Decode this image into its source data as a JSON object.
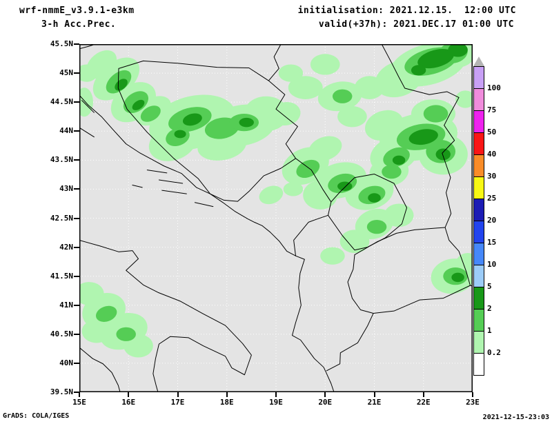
{
  "header": {
    "model": "wrf-nmmE_v3.9.1-e3km",
    "product": "3-h Acc.Prec.",
    "init_line": "initialisation: 2021.12.15.  12:00 UTC",
    "valid_line": "valid(+37h): 2021.DEC.17 01:00 UTC"
  },
  "footer": {
    "grads_credit": "GrADS: COLA/IGES",
    "timestamp": "2021-12-15-23:03"
  },
  "axes": {
    "lat_labels": [
      "45.5N",
      "45N",
      "44.5N",
      "44N",
      "43.5N",
      "43N",
      "42.5N",
      "42N",
      "41.5N",
      "41N",
      "40.5N",
      "40N",
      "39.5N"
    ],
    "lon_labels": [
      "15E",
      "16E",
      "17E",
      "18E",
      "19E",
      "20E",
      "21E",
      "22E",
      "23E"
    ]
  },
  "map": {
    "background": "#e4e4e4",
    "grid_color": "#ffffff",
    "outline_color": "#000000",
    "lon_range": [
      15,
      23
    ],
    "lat_range": [
      39.5,
      45.5
    ]
  },
  "legend": {
    "triangle_color": "#b4b4b4",
    "colors": [
      "#c8a0f5",
      "#f08cdc",
      "#ee22ee",
      "#fa1616",
      "#fa8c28",
      "#f8f814",
      "#1c1cb4",
      "#2244ee",
      "#4688fa",
      "#9cccf8",
      "#189818",
      "#55cd55",
      "#b0f5b0",
      "#ffffff"
    ],
    "labels": [
      "100",
      "75",
      "50",
      "40",
      "30",
      "25",
      "20",
      "15",
      "10",
      "5",
      "2",
      "1",
      "0.2"
    ]
  },
  "precip": {
    "colors": {
      "light": "#b0f5b0",
      "mid": "#55cd55",
      "dark": "#189818"
    },
    "blobs": {
      "light": [
        [
          15.75,
          44.9,
          0.55,
          0.28,
          -40
        ],
        [
          16.1,
          44.5,
          0.5,
          0.3,
          -35
        ],
        [
          15.45,
          45.15,
          0.35,
          0.2,
          -40
        ],
        [
          16.5,
          44.35,
          0.4,
          0.22,
          -30
        ],
        [
          15.15,
          45.0,
          0.22,
          0.15,
          0
        ],
        [
          15.1,
          44.5,
          0.18,
          0.25,
          0
        ],
        [
          17.3,
          44.15,
          0.9,
          0.45,
          -15
        ],
        [
          18.3,
          44.1,
          0.7,
          0.35,
          -10
        ],
        [
          16.9,
          43.8,
          0.5,
          0.3,
          -20
        ],
        [
          17.9,
          43.75,
          0.5,
          0.25,
          -10
        ],
        [
          18.8,
          44.3,
          0.45,
          0.3,
          0
        ],
        [
          19.2,
          44.3,
          0.3,
          0.2,
          -10
        ],
        [
          19.6,
          44.75,
          0.35,
          0.2,
          0
        ],
        [
          20.3,
          44.6,
          0.45,
          0.25,
          -10
        ],
        [
          20.9,
          44.75,
          0.3,
          0.2,
          0
        ],
        [
          20.0,
          45.15,
          0.3,
          0.18,
          0
        ],
        [
          19.3,
          45.0,
          0.25,
          0.15,
          0
        ],
        [
          20.55,
          44.25,
          0.3,
          0.18,
          0
        ],
        [
          22.1,
          45.15,
          0.8,
          0.35,
          -15
        ],
        [
          21.5,
          44.9,
          0.5,
          0.3,
          -20
        ],
        [
          22.7,
          45.35,
          0.35,
          0.25,
          0
        ],
        [
          21.9,
          43.9,
          0.8,
          0.4,
          -10
        ],
        [
          22.4,
          43.6,
          0.5,
          0.35,
          0
        ],
        [
          21.4,
          43.6,
          0.5,
          0.3,
          -20
        ],
        [
          22.2,
          44.3,
          0.45,
          0.25,
          0
        ],
        [
          21.2,
          44.1,
          0.4,
          0.25,
          -20
        ],
        [
          22.85,
          44.55,
          0.2,
          0.15,
          0
        ],
        [
          19.6,
          43.4,
          0.5,
          0.3,
          -25
        ],
        [
          20.3,
          43.15,
          0.55,
          0.3,
          -15
        ],
        [
          20.9,
          42.95,
          0.5,
          0.3,
          -15
        ],
        [
          19.9,
          42.9,
          0.35,
          0.25,
          0
        ],
        [
          20.0,
          43.7,
          0.35,
          0.2,
          -20
        ],
        [
          21.3,
          43.3,
          0.4,
          0.25,
          -10
        ],
        [
          21.0,
          42.4,
          0.4,
          0.25,
          -20
        ],
        [
          20.6,
          42.1,
          0.3,
          0.2,
          0
        ],
        [
          21.5,
          42.55,
          0.3,
          0.2,
          0
        ],
        [
          20.15,
          41.85,
          0.25,
          0.15,
          0
        ],
        [
          22.6,
          41.5,
          0.45,
          0.3,
          -10
        ],
        [
          22.9,
          41.7,
          0.25,
          0.2,
          0
        ],
        [
          15.5,
          40.9,
          0.45,
          0.3,
          -20
        ],
        [
          15.9,
          40.55,
          0.5,
          0.3,
          -20
        ],
        [
          15.2,
          41.2,
          0.3,
          0.2,
          0
        ],
        [
          16.2,
          40.3,
          0.3,
          0.2,
          0
        ],
        [
          15.35,
          40.55,
          0.3,
          0.2,
          0
        ],
        [
          18.9,
          42.9,
          0.25,
          0.15,
          -20
        ],
        [
          19.35,
          43.0,
          0.2,
          0.12,
          0
        ]
      ],
      "mid": [
        [
          15.8,
          44.85,
          0.3,
          0.15,
          -40
        ],
        [
          16.15,
          44.5,
          0.28,
          0.16,
          -35
        ],
        [
          16.45,
          44.3,
          0.22,
          0.12,
          -30
        ],
        [
          17.25,
          44.2,
          0.45,
          0.2,
          -15
        ],
        [
          17.9,
          44.05,
          0.35,
          0.18,
          -10
        ],
        [
          18.35,
          44.15,
          0.3,
          0.15,
          0
        ],
        [
          17.0,
          43.9,
          0.25,
          0.15,
          -20
        ],
        [
          20.35,
          44.6,
          0.2,
          0.12,
          0
        ],
        [
          22.15,
          45.2,
          0.55,
          0.22,
          -15
        ],
        [
          22.6,
          45.35,
          0.3,
          0.18,
          -10
        ],
        [
          21.95,
          43.9,
          0.5,
          0.22,
          -10
        ],
        [
          22.35,
          43.65,
          0.3,
          0.2,
          0
        ],
        [
          21.45,
          43.55,
          0.28,
          0.16,
          -20
        ],
        [
          22.25,
          44.3,
          0.25,
          0.15,
          0
        ],
        [
          20.35,
          43.1,
          0.3,
          0.16,
          -15
        ],
        [
          20.95,
          42.9,
          0.28,
          0.15,
          -15
        ],
        [
          19.65,
          43.35,
          0.25,
          0.14,
          -25
        ],
        [
          21.35,
          43.3,
          0.2,
          0.12,
          0
        ],
        [
          21.05,
          42.35,
          0.2,
          0.12,
          0
        ],
        [
          22.65,
          41.5,
          0.25,
          0.15,
          0
        ],
        [
          15.55,
          40.85,
          0.22,
          0.13,
          -20
        ],
        [
          15.95,
          40.5,
          0.2,
          0.12,
          0
        ]
      ],
      "dark": [
        [
          15.85,
          44.8,
          0.15,
          0.08,
          -40
        ],
        [
          16.2,
          44.45,
          0.14,
          0.07,
          -35
        ],
        [
          17.3,
          44.2,
          0.2,
          0.1,
          -15
        ],
        [
          18.4,
          44.15,
          0.15,
          0.08,
          0
        ],
        [
          17.05,
          43.95,
          0.12,
          0.07,
          0
        ],
        [
          22.25,
          45.25,
          0.38,
          0.15,
          -15
        ],
        [
          22.7,
          45.4,
          0.2,
          0.12,
          0
        ],
        [
          21.9,
          45.05,
          0.15,
          0.09,
          0
        ],
        [
          22.0,
          43.9,
          0.3,
          0.13,
          -10
        ],
        [
          22.4,
          43.6,
          0.15,
          0.1,
          0
        ],
        [
          21.5,
          43.5,
          0.13,
          0.08,
          0
        ],
        [
          20.4,
          43.05,
          0.15,
          0.08,
          0
        ],
        [
          21.0,
          42.85,
          0.13,
          0.08,
          0
        ],
        [
          22.7,
          41.48,
          0.13,
          0.08,
          0
        ]
      ]
    }
  }
}
